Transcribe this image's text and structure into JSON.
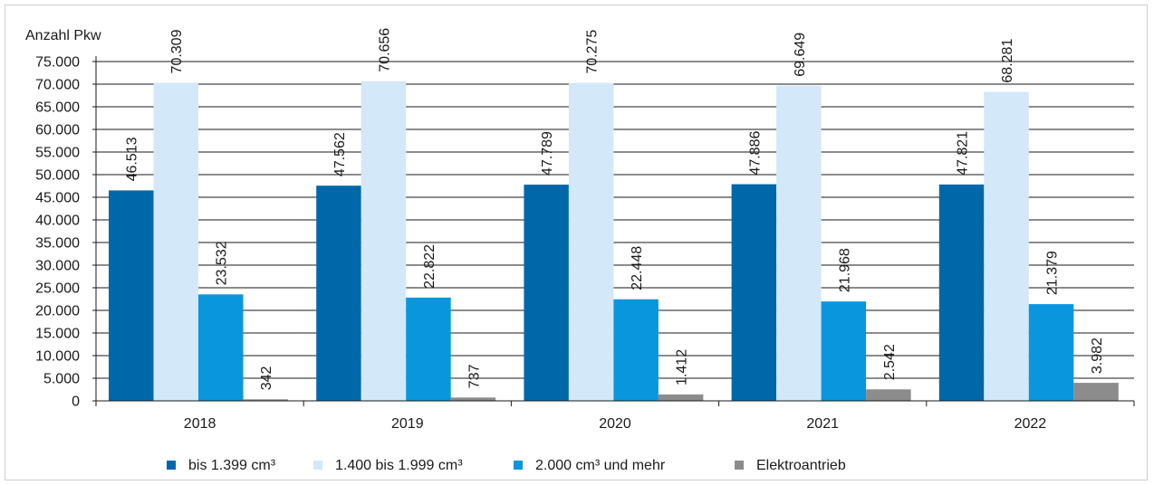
{
  "chart_data": {
    "type": "bar",
    "ylabel": "Anzahl Pkw",
    "categories": [
      "2018",
      "2019",
      "2020",
      "2021",
      "2022"
    ],
    "ylim": [
      0,
      75000
    ],
    "ytick_step": 5000,
    "yticks": [
      "0",
      "5.000",
      "10.000",
      "15.000",
      "20.000",
      "25.000",
      "30.000",
      "35.000",
      "40.000",
      "45.000",
      "50.000",
      "55.000",
      "60.000",
      "65.000",
      "70.000",
      "75.000"
    ],
    "grid": true,
    "legend_position": "bottom",
    "series": [
      {
        "name": "bis 1.399 cm³",
        "color": "#0068a8",
        "values": [
          46513,
          47562,
          47789,
          47886,
          47821
        ],
        "labels": [
          "46.513",
          "47.562",
          "47.789",
          "47.886",
          "47.821"
        ]
      },
      {
        "name": "1.400 bis 1.999 cm³",
        "color": "#d3e8f8",
        "values": [
          70309,
          70656,
          70275,
          69649,
          68281
        ],
        "labels": [
          "70.309",
          "70.656",
          "70.275",
          "69.649",
          "68.281"
        ]
      },
      {
        "name": "2.000 cm³ und mehr",
        "color": "#0a96dc",
        "values": [
          23532,
          22822,
          22448,
          21968,
          21379
        ],
        "labels": [
          "23.532",
          "22.822",
          "22.448",
          "21.968",
          "21.379"
        ]
      },
      {
        "name": "Elektroantrieb",
        "color": "#8c8c8c",
        "values": [
          342,
          737,
          1412,
          2542,
          3982
        ],
        "labels": [
          "342",
          "737",
          "1.412",
          "2.542",
          "3.982"
        ]
      }
    ]
  }
}
